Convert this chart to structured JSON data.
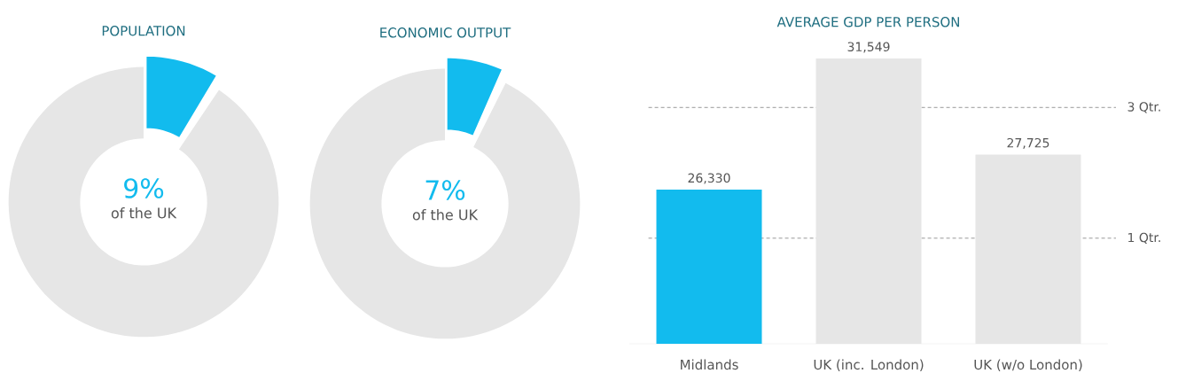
{
  "chart_data": [
    {
      "type": "donut",
      "title": "POPULATION",
      "categories": [
        null,
        null
      ],
      "values": [
        9,
        91
      ],
      "colors": [
        "#12bbee",
        "#e6e6e6"
      ],
      "annotations": [
        "9%",
        "of the UK"
      ]
    },
    {
      "type": "donut",
      "title": "ECONOMIC OUTPUT",
      "categories": [
        null,
        null
      ],
      "values": [
        7,
        93
      ],
      "colors": [
        "#12bbee",
        "#e6e6e6"
      ],
      "annotations": [
        "7%",
        "of the UK"
      ]
    },
    {
      "type": "bar",
      "title": "AVERAGE GDP PER PERSON",
      "categories": [
        "Midlands",
        "UK (inc. London)",
        "UK (w/o London)"
      ],
      "values": [
        26330,
        31549,
        27725
      ],
      "colors": [
        "#12bbee",
        "#e6e6e6",
        "#e6e6e6"
      ],
      "value_labels": [
        "26,330",
        "31,549",
        "27,725"
      ],
      "ylim": [
        20200,
        31549
      ],
      "ref_lines": [
        {
          "axis": "y",
          "value": 29600,
          "label": "3 Qtr.",
          "color": "#999999",
          "line_style": "dashed"
        },
        {
          "axis": "y",
          "value": 24400,
          "label": "1 Qtr.",
          "color": "#999999",
          "line_style": "dashed"
        }
      ]
    }
  ]
}
